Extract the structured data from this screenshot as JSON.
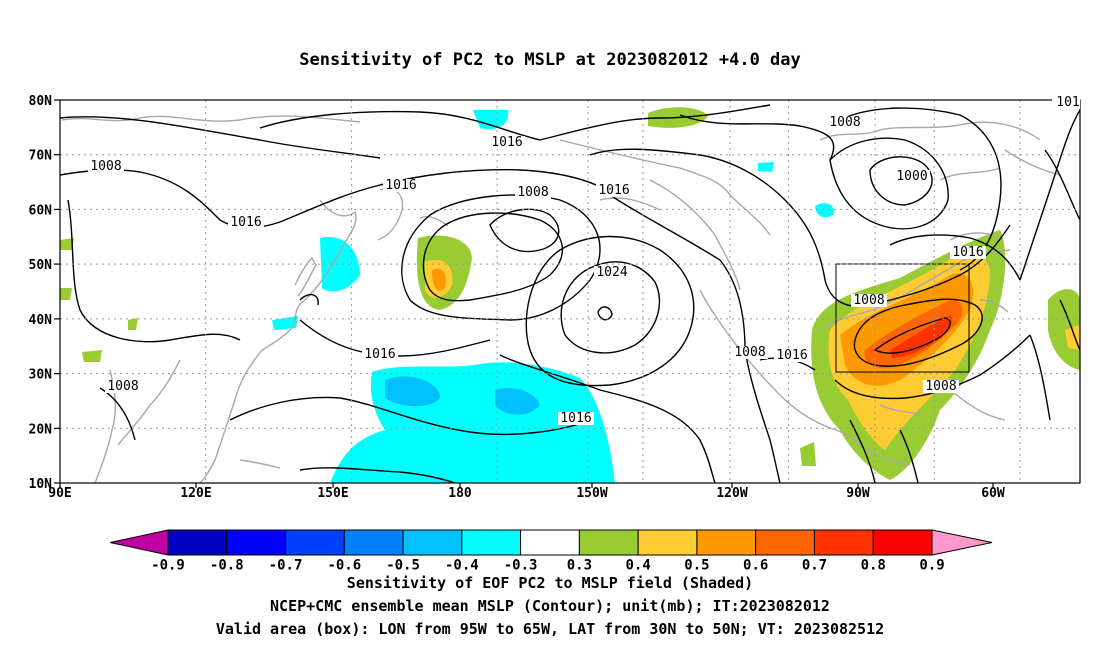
{
  "title": "Sensitivity of PC2 to MSLP at 2023082012 +4.0 day",
  "map": {
    "lat_labels": [
      "80N",
      "70N",
      "60N",
      "50N",
      "40N",
      "30N",
      "20N",
      "10N"
    ],
    "lon_labels": [
      "90E",
      "120E",
      "150E",
      "180",
      "150W",
      "120W",
      "90W",
      "60W"
    ],
    "contour_labels": [
      "1008",
      "1016",
      "1016",
      "1016",
      "1008",
      "1016",
      "1024",
      "1008",
      "1000",
      "1016",
      "1008",
      "1016",
      "1008",
      "1016",
      "1008",
      "1008",
      "1016",
      "101"
    ],
    "valid_box": {
      "lon_west": "95W",
      "lon_east": "65W",
      "lat_south": "30N",
      "lat_north": "50N"
    }
  },
  "colorbar": {
    "labels": [
      "-0.9",
      "-0.8",
      "-0.7",
      "-0.6",
      "-0.5",
      "-0.4",
      "-0.3",
      "0.3",
      "0.4",
      "0.5",
      "0.6",
      "0.7",
      "0.8",
      "0.9"
    ],
    "colors": [
      "#c000a0",
      "#0000c0",
      "#0000ff",
      "#0040ff",
      "#0080ff",
      "#00c0ff",
      "#00ffff",
      "#ffffff",
      "#99cc33",
      "#ffcc33",
      "#ff9900",
      "#ff6600",
      "#ff3300",
      "#ff0000",
      "#ff99cc"
    ]
  },
  "captions": {
    "line1": "Sensitivity of EOF PC2 to MSLP field (Shaded)",
    "line2": "NCEP+CMC ensemble mean MSLP (Contour); unit(mb); IT:2023082012",
    "line3": "Valid area (box): LON from 95W to 65W, LAT from 30N to 50N; VT: 2023082512"
  }
}
